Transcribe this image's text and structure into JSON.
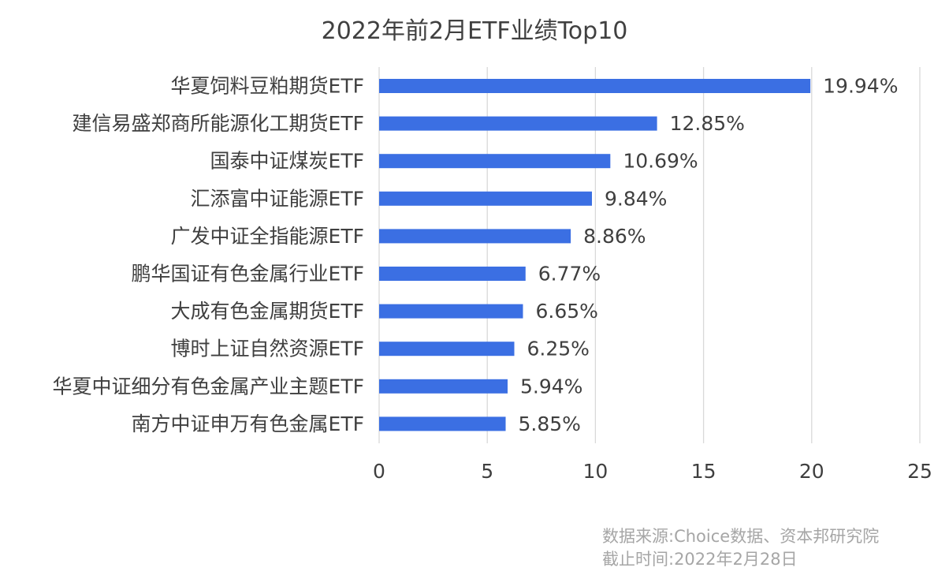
{
  "chart_data": {
    "type": "bar",
    "orientation": "horizontal",
    "title": "2022年前2月ETF业绩Top10",
    "categories": [
      "华夏饲料豆粕期货ETF",
      "建信易盛郑商所能源化工期货ETF",
      "国泰中证煤炭ETF",
      "汇添富中证能源ETF",
      "广发中证全指能源ETF",
      "鹏华国证有色金属行业ETF",
      "大成有色金属期货ETF",
      "博时上证自然资源ETF",
      "华夏中证细分有色金属产业主题ETF",
      "南方中证申万有色金属ETF"
    ],
    "values": [
      19.94,
      12.85,
      10.69,
      9.84,
      8.86,
      6.77,
      6.65,
      6.25,
      5.94,
      5.85
    ],
    "data_labels": [
      "19.94%",
      "12.85%",
      "10.69%",
      "9.84%",
      "8.86%",
      "6.77%",
      "6.65%",
      "6.25%",
      "5.94%",
      "5.85%"
    ],
    "xlim": [
      0,
      25
    ],
    "xticks": [
      0,
      5,
      10,
      15,
      20,
      25
    ],
    "grid": "vertical",
    "bar_color": "#3b6fe3",
    "grid_color": "#d9d9d9",
    "text_color": "#3f3f3f"
  },
  "footnote": {
    "source": "数据来源:Choice数据、资本邦研究院",
    "date": "截止时间:2022年2月28日"
  }
}
